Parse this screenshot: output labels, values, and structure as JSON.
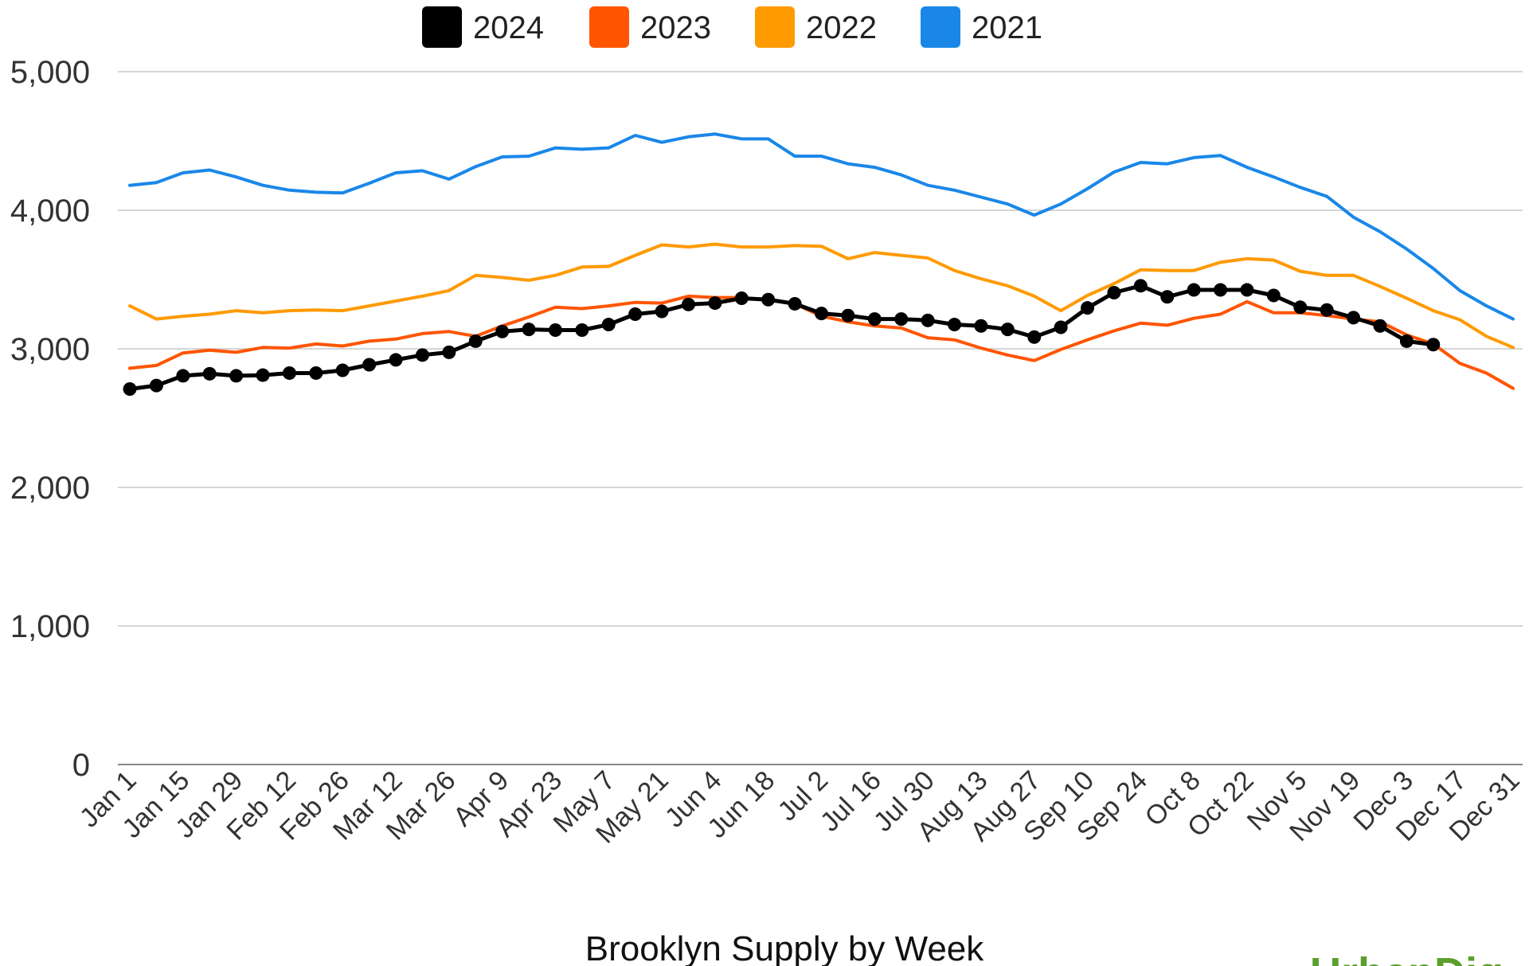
{
  "chart_data": {
    "type": "line",
    "title": "Brooklyn Supply by Week",
    "xlabel": "",
    "ylabel": "",
    "ylim": [
      0,
      5000
    ],
    "yticks": [
      0,
      1000,
      2000,
      3000,
      4000,
      5000
    ],
    "ytick_labels": [
      "0",
      "1,000",
      "2,000",
      "3,000",
      "4,000",
      "5,000"
    ],
    "x_labels": [
      "Jan 1",
      "Jan 15",
      "Jan 29",
      "Feb 12",
      "Feb 26",
      "Mar 12",
      "Mar 26",
      "Apr 9",
      "Apr 23",
      "May 7",
      "May 21",
      "Jun 4",
      "Jun 18",
      "Jul 2",
      "Jul 16",
      "Jul 30",
      "Aug 13",
      "Aug 27",
      "Sep 10",
      "Sep 24",
      "Oct 8",
      "Oct 22",
      "Nov 5",
      "Nov 19",
      "Dec 3",
      "Dec 17",
      "Dec 31"
    ],
    "grid": true,
    "legend_position": "top",
    "series": [
      {
        "name": "2021",
        "color": "#1a87e8",
        "markers": false,
        "values": [
          4180,
          4200,
          4270,
          4290,
          4240,
          4180,
          4145,
          4130,
          4125,
          4195,
          4270,
          4285,
          4225,
          4315,
          4385,
          4390,
          4450,
          4440,
          4450,
          4540,
          4490,
          4530,
          4550,
          4515,
          4515,
          4390,
          4390,
          4335,
          4310,
          4255,
          4180,
          4145,
          4095,
          4045,
          3965,
          4045,
          4155,
          4275,
          4345,
          4335,
          4380,
          4395,
          4310,
          4240,
          4165,
          4100,
          3950,
          3845,
          3720,
          3580,
          3420,
          3310,
          3215
        ]
      },
      {
        "name": "2022",
        "color": "#ff9a00",
        "markers": false,
        "values": [
          3310,
          3215,
          3235,
          3250,
          3275,
          3260,
          3275,
          3280,
          3275,
          3310,
          3345,
          3380,
          3420,
          3530,
          3515,
          3495,
          3530,
          3590,
          3595,
          3675,
          3750,
          3735,
          3755,
          3735,
          3735,
          3745,
          3740,
          3650,
          3695,
          3675,
          3655,
          3565,
          3505,
          3455,
          3380,
          3275,
          3385,
          3470,
          3570,
          3565,
          3565,
          3625,
          3650,
          3640,
          3560,
          3530,
          3530,
          3450,
          3365,
          3275,
          3210,
          3090,
          3010
        ]
      },
      {
        "name": "2023",
        "color": "#ff5500",
        "markers": false,
        "values": [
          2860,
          2880,
          2970,
          2990,
          2975,
          3010,
          3005,
          3035,
          3020,
          3055,
          3070,
          3110,
          3125,
          3090,
          3165,
          3230,
          3300,
          3290,
          3310,
          3335,
          3330,
          3380,
          3370,
          3370,
          3350,
          3325,
          3235,
          3195,
          3165,
          3150,
          3080,
          3065,
          3005,
          2955,
          2915,
          2995,
          3065,
          3130,
          3185,
          3170,
          3220,
          3250,
          3340,
          3260,
          3260,
          3240,
          3215,
          3195,
          3100,
          3035,
          2895,
          2825,
          2715
        ]
      },
      {
        "name": "2024",
        "color": "#000000",
        "markers": true,
        "values": [
          2710,
          2735,
          2805,
          2820,
          2805,
          2810,
          2825,
          2825,
          2845,
          2885,
          2920,
          2955,
          2975,
          3055,
          3125,
          3140,
          3135,
          3135,
          3175,
          3250,
          3270,
          3320,
          3330,
          3365,
          3355,
          3325,
          3255,
          3240,
          3215,
          3215,
          3205,
          3175,
          3165,
          3140,
          3085,
          3155,
          3295,
          3405,
          3455,
          3375,
          3425,
          3425,
          3425,
          3385,
          3300,
          3280,
          3225,
          3165,
          3055,
          3030
        ]
      }
    ],
    "legend_order": [
      "2024",
      "2023",
      "2022",
      "2021"
    ]
  },
  "brand": {
    "text": "UrbanDig",
    "color": "#5aa02c"
  }
}
